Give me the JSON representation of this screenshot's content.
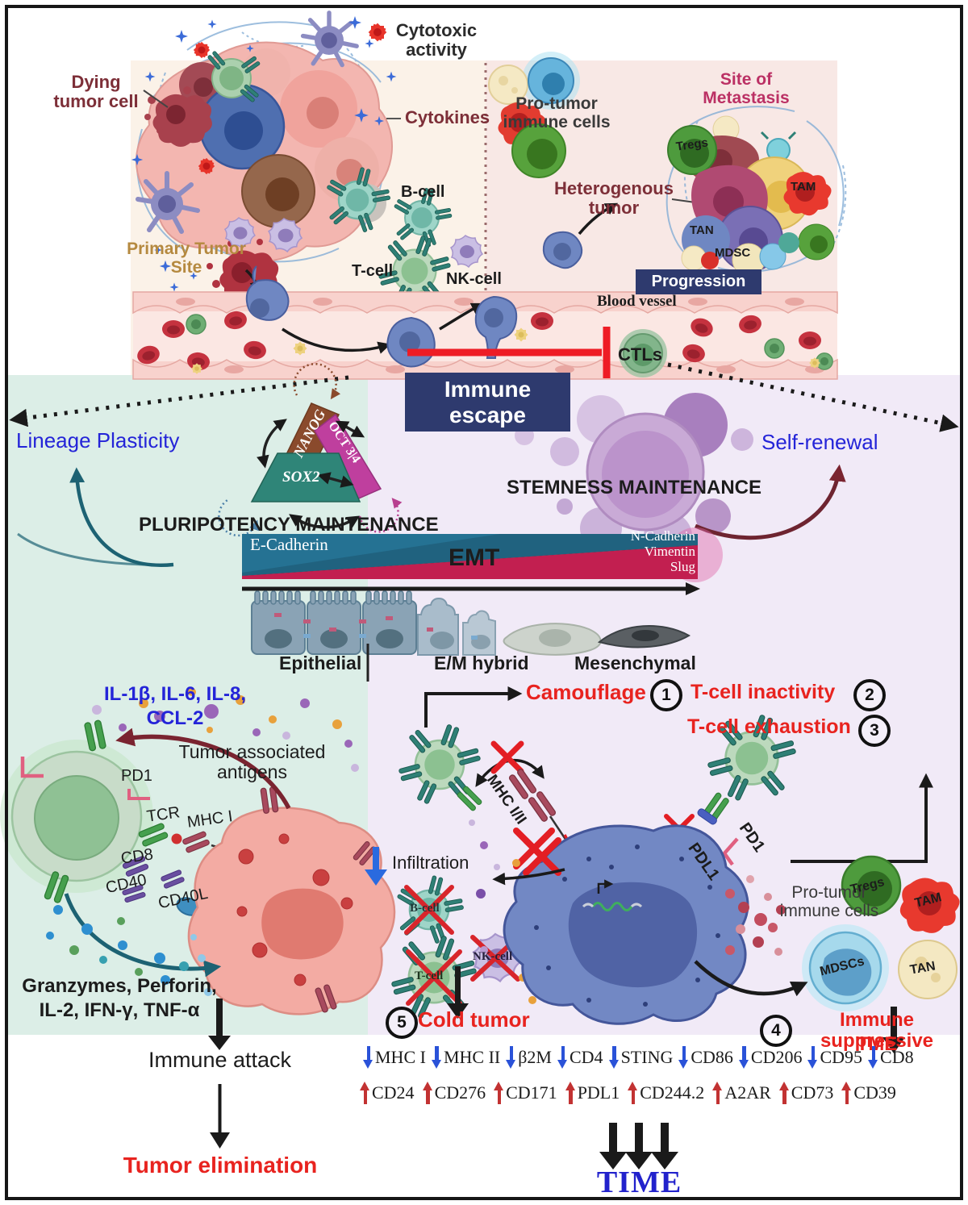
{
  "colors": {
    "navy": "#2e3a6e",
    "red_text": "#e8231f",
    "blue_text": "#2424d8",
    "maroon_text": "#7d2f38",
    "gold_text": "#b5893f",
    "crimson_text": "#bb3064",
    "mint_bg": "#dceee7",
    "lavender_bg": "#f1eaf7",
    "cream_bg": "#fbf2e8",
    "pink_bg": "#f8e8e5",
    "marker_down_arrow": "#2a52d8",
    "marker_up_arrow": "#c23232"
  },
  "top": {
    "dying_tumor_cell": "Dying tumor cell",
    "cytotoxic_activity": "Cytotoxic activity",
    "cytokines": "Cytokines",
    "b_cell": "B-cell",
    "t_cell": "T-cell",
    "nk_cell": "NK-cell",
    "primary_tumor_site": "Primary Tumor Site",
    "pro_tumor_immune_cells": "Pro-tumor immune cells",
    "site_of_metastasis": "Site of Metastasis",
    "heterogenous_tumor": "Heterogenous tumor",
    "tregs": "Tregs",
    "tam": "TAM",
    "tan": "TAN",
    "mdsc": "MDSC",
    "progression": "Progression",
    "blood_vessel": "Blood vessel",
    "ctls": "CTLs",
    "immune_escape": "Immune escape"
  },
  "middle": {
    "lineage_plasticity": "Lineage Plasticity",
    "nanog": "NANOG",
    "oct34": "OCT 3|4",
    "sox2": "SOX2",
    "pluripotency_maintenance": "PLURIPOTENCY MAINTENANCE",
    "stemness_maintenance": "STEMNESS MAINTENANCE",
    "self_renewal": "Self-renewal",
    "e_cadherin": "E-Cadherin",
    "emt": "EMT",
    "n_cadherin": "N-Cadherin",
    "vimentin": "Vimentin",
    "slug": "Slug",
    "epithelial": "Epithelial",
    "em_hybrid": "E/M hybrid",
    "mesenchymal": "Mesenchymal"
  },
  "left": {
    "interleukins_line1": "IL-1β, IL-6, IL-8,",
    "interleukins_line2": "CCL-2",
    "tumor_associated_antigens": "Tumor associated antigens",
    "pd1": "PD1",
    "tcr": "TCR",
    "mhc_i": "MHC I",
    "cd8": "CD8",
    "cd40": "CD40",
    "cd40l": "CD40L",
    "effectors_line1": "Granzymes, Perforin,",
    "effectors_line2": "IL-2, IFN-γ, TNF-α",
    "immune_attack": "Immune attack",
    "tumor_elimination": "Tumor elimination"
  },
  "right": {
    "camouflage": "Camouflage",
    "num1": "1",
    "num2": "2",
    "num3": "3",
    "num4": "4",
    "num5": "5",
    "t_cell_inactivity": "T-cell inactivity",
    "t_cell_exhaustion": "T-cell exhaustion",
    "mhc_i_ii": "MHC I/II",
    "pdl1": "PDL1",
    "pd1": "PD1",
    "infiltration": "Infiltration",
    "b_cell": "B-cell",
    "t_cell": "T-cell",
    "nk_cell": "NK-cell",
    "cold_tumor": "Cold tumor",
    "pro_tumor_immune_cells": "Pro-tumor immune cells",
    "tregs": "Tregs",
    "tam": "TAM",
    "tan": "TAN",
    "mdscs": "MDSCs",
    "immune_suppressive": "Immune suppressive",
    "tme": "TME"
  },
  "markers": {
    "down": [
      "MHC I",
      "MHC II",
      "β2M",
      "CD4",
      "STING",
      "CD86",
      "CD206",
      "CD95",
      "CD8"
    ],
    "up": [
      "CD24",
      "CD276",
      "CD171",
      "PDL1",
      "CD244.2",
      "A2AR",
      "CD73",
      "CD39"
    ]
  },
  "time_label": "TIME"
}
